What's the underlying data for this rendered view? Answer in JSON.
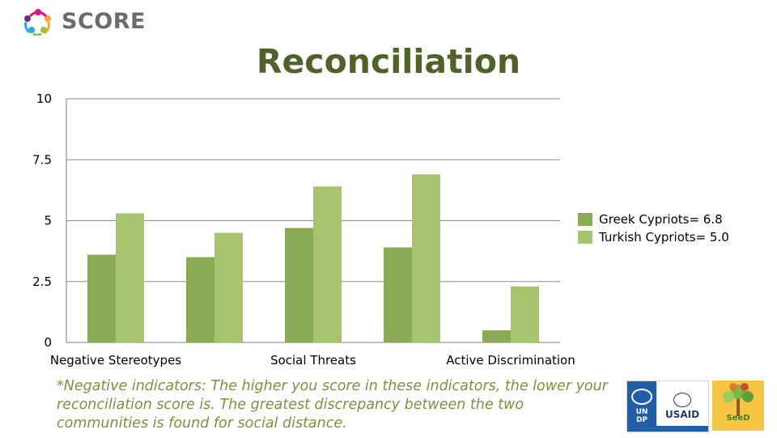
{
  "brand": {
    "name": "SCORE",
    "logo_icon": "score-people-circle-icon"
  },
  "title": "Reconciliation",
  "chart_data": {
    "type": "bar",
    "categories": [
      "Negative Stereotypes",
      "",
      "Social Threats",
      "",
      "Active Discrimination"
    ],
    "series": [
      {
        "name": "Greek Cypriots= 6.8",
        "color": "#8aaa55",
        "values": [
          3.6,
          3.5,
          4.7,
          3.9,
          0.5
        ]
      },
      {
        "name": "Turkish Cypriots= 5.0",
        "color": "#a6c46e",
        "values": [
          5.3,
          4.5,
          6.4,
          6.9,
          2.3
        ]
      }
    ],
    "ylim": [
      0,
      10
    ],
    "yticks": [
      "0",
      "2.5",
      "5",
      "7.5",
      "10"
    ],
    "ytick_values": [
      0,
      2.5,
      5,
      7.5,
      10
    ],
    "grid": true,
    "legend_position": "right",
    "xlabel": "",
    "ylabel": ""
  },
  "note": "*Negative indicators: The higher you score in these indicators, the lower your reconciliation score is. The greatest discrepancy between the two communities is found for social distance.",
  "partners": {
    "undp": {
      "letters": [
        "U",
        "N",
        "D",
        "P"
      ]
    },
    "usaid": "USAID",
    "seed": "SeeD"
  }
}
